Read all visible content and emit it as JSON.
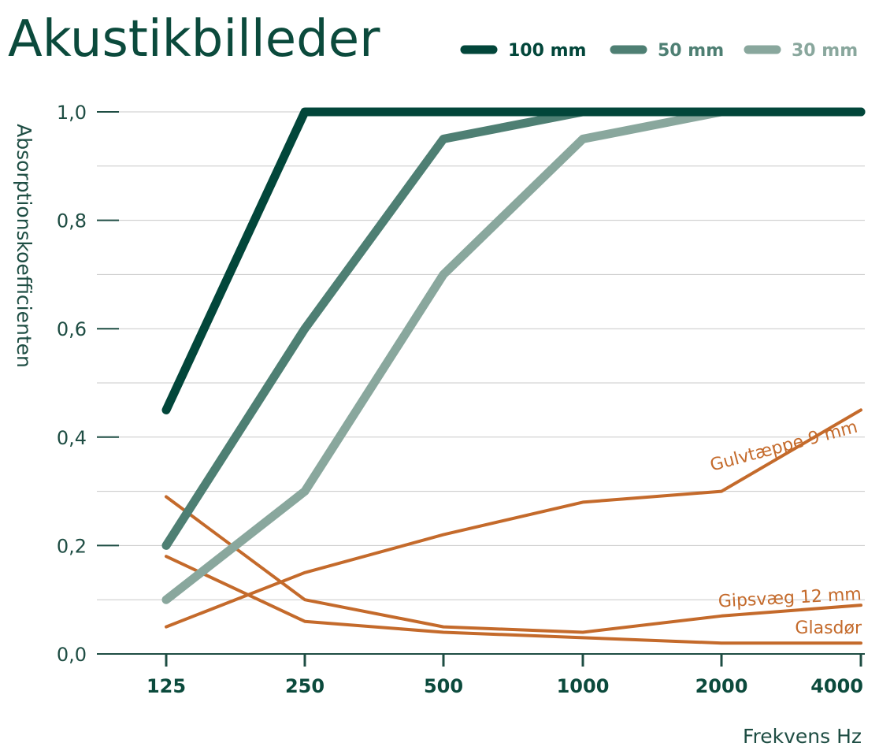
{
  "colors": {
    "dark": "#02463a",
    "mid": "#4e7f73",
    "light": "#89a79d",
    "orange": "#c46a2b",
    "text": "#1e4d43",
    "grid": "#c8c8c8",
    "axis": "#1e4d43"
  },
  "chart_data": {
    "type": "line",
    "title": "Akustikbilleder",
    "xlabel": "Frekvens Hz",
    "ylabel": "Absorptionskoefficienten",
    "categories": [
      "125",
      "250",
      "500",
      "1000",
      "2000",
      "4000"
    ],
    "ylim": [
      0,
      1
    ],
    "yticks": [
      "0,0",
      "0,2",
      "0,4",
      "0,6",
      "0,8",
      "1,0"
    ],
    "grid": true,
    "legend_position": "top-right",
    "series": [
      {
        "name": "100 mm",
        "values": [
          0.45,
          1.0,
          1.0,
          1.0,
          1.0,
          1.0
        ],
        "color": "#02463a",
        "style": "thick",
        "legend": true
      },
      {
        "name": "50 mm",
        "values": [
          0.2,
          0.6,
          0.95,
          1.0,
          1.0,
          1.0
        ],
        "color": "#4e7f73",
        "style": "thick",
        "legend": true
      },
      {
        "name": "30 mm",
        "values": [
          0.1,
          0.3,
          0.7,
          0.95,
          1.0,
          1.0
        ],
        "color": "#89a79d",
        "style": "thick",
        "legend": true
      },
      {
        "name": "Gulvtæppe 9 mm",
        "values": [
          0.05,
          0.15,
          0.22,
          0.28,
          0.3,
          0.45
        ],
        "color": "#c46a2b",
        "style": "thin",
        "legend": false
      },
      {
        "name": "Gipsvæg 12 mm",
        "values": [
          0.29,
          0.1,
          0.05,
          0.04,
          0.07,
          0.09
        ],
        "color": "#c46a2b",
        "style": "thin",
        "legend": false
      },
      {
        "name": "Glasdør",
        "values": [
          0.18,
          0.06,
          0.04,
          0.03,
          0.02,
          0.02
        ],
        "color": "#c46a2b",
        "style": "thin",
        "legend": false
      }
    ]
  }
}
